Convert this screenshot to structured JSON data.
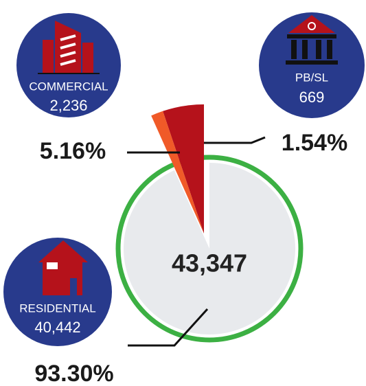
{
  "chart_data": {
    "type": "pie",
    "categories": [
      "RESIDENTIAL",
      "COMMERCIAL",
      "PB/SL"
    ],
    "values": [
      93.3,
      5.16,
      1.54
    ],
    "value_labels": [
      "93.30%",
      "5.16%",
      "1.54%"
    ],
    "colors": [
      "#e8eaed",
      "#b5121b",
      "#f05a28"
    ],
    "counts": [
      {
        "value": 40442,
        "label": "40,442"
      },
      {
        "value": 2236,
        "label": "2,236"
      },
      {
        "value": 669,
        "label": "669"
      }
    ],
    "total": {
      "value": 43347,
      "label": "43,347"
    }
  }
}
